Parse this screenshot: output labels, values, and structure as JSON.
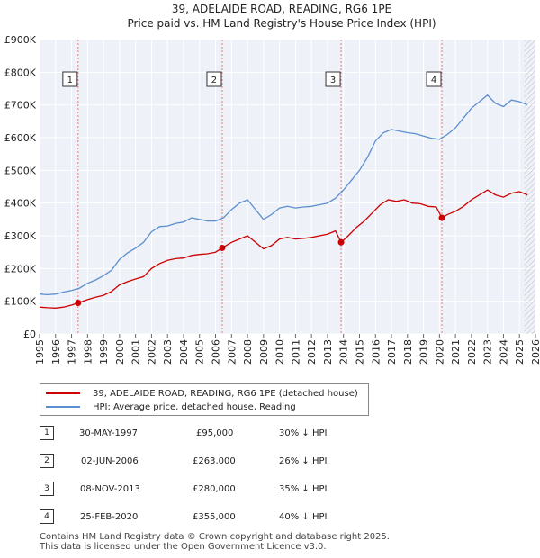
{
  "chart_data": {
    "type": "line",
    "title": "39, ADELAIDE ROAD, READING, RG6 1PE",
    "subtitle": "Price paid vs. HM Land Registry's House Price Index (HPI)",
    "xlim": [
      1995,
      2026
    ],
    "ylim": [
      0,
      900000
    ],
    "xticks": [
      "1995",
      "1996",
      "1997",
      "1998",
      "1999",
      "2000",
      "2001",
      "2002",
      "2003",
      "2004",
      "2005",
      "2006",
      "2007",
      "2008",
      "2009",
      "2010",
      "2011",
      "2012",
      "2013",
      "2014",
      "2015",
      "2016",
      "2017",
      "2018",
      "2019",
      "2020",
      "2021",
      "2022",
      "2023",
      "2024",
      "2025",
      "2026"
    ],
    "yticks": [
      {
        "value": 0,
        "label": "£0"
      },
      {
        "value": 100000,
        "label": "£100K"
      },
      {
        "value": 200000,
        "label": "£200K"
      },
      {
        "value": 300000,
        "label": "£300K"
      },
      {
        "value": 400000,
        "label": "£400K"
      },
      {
        "value": 500000,
        "label": "£500K"
      },
      {
        "value": 600000,
        "label": "£600K"
      },
      {
        "value": 700000,
        "label": "£700K"
      },
      {
        "value": 800000,
        "label": "£800K"
      },
      {
        "value": 900000,
        "label": "£900K"
      }
    ],
    "grid": true,
    "forecast_start": 2025.3,
    "series": [
      {
        "name": "39, ADELAIDE ROAD, READING, RG6 1PE (detached house)",
        "color": "#cc0000",
        "points": [
          [
            1995.0,
            82000
          ],
          [
            1995.5,
            80000
          ],
          [
            1996.0,
            79000
          ],
          [
            1996.5,
            82000
          ],
          [
            1997.0,
            88000
          ],
          [
            1997.41,
            95000
          ],
          [
            1998.0,
            105000
          ],
          [
            1998.5,
            112000
          ],
          [
            1999.0,
            118000
          ],
          [
            1999.5,
            130000
          ],
          [
            2000.0,
            150000
          ],
          [
            2000.5,
            160000
          ],
          [
            2001.0,
            168000
          ],
          [
            2001.5,
            175000
          ],
          [
            2002.0,
            200000
          ],
          [
            2002.5,
            215000
          ],
          [
            2003.0,
            225000
          ],
          [
            2003.5,
            230000
          ],
          [
            2004.0,
            232000
          ],
          [
            2004.5,
            240000
          ],
          [
            2005.0,
            243000
          ],
          [
            2005.5,
            245000
          ],
          [
            2006.0,
            250000
          ],
          [
            2006.42,
            263000
          ],
          [
            2007.0,
            280000
          ],
          [
            2007.5,
            290000
          ],
          [
            2008.0,
            300000
          ],
          [
            2008.5,
            280000
          ],
          [
            2009.0,
            260000
          ],
          [
            2009.5,
            270000
          ],
          [
            2010.0,
            290000
          ],
          [
            2010.5,
            295000
          ],
          [
            2011.0,
            290000
          ],
          [
            2011.5,
            292000
          ],
          [
            2012.0,
            295000
          ],
          [
            2012.5,
            300000
          ],
          [
            2013.0,
            305000
          ],
          [
            2013.5,
            315000
          ],
          [
            2013.85,
            280000
          ],
          [
            2014.3,
            300000
          ],
          [
            2014.8,
            325000
          ],
          [
            2015.3,
            345000
          ],
          [
            2015.8,
            370000
          ],
          [
            2016.3,
            395000
          ],
          [
            2016.8,
            410000
          ],
          [
            2017.3,
            405000
          ],
          [
            2017.8,
            410000
          ],
          [
            2018.3,
            400000
          ],
          [
            2018.8,
            398000
          ],
          [
            2019.3,
            390000
          ],
          [
            2019.8,
            388000
          ],
          [
            2020.15,
            355000
          ],
          [
            2020.5,
            365000
          ],
          [
            2021.0,
            375000
          ],
          [
            2021.5,
            390000
          ],
          [
            2022.0,
            410000
          ],
          [
            2022.5,
            425000
          ],
          [
            2023.0,
            440000
          ],
          [
            2023.5,
            425000
          ],
          [
            2024.0,
            418000
          ],
          [
            2024.5,
            430000
          ],
          [
            2025.0,
            435000
          ],
          [
            2025.5,
            425000
          ]
        ]
      },
      {
        "name": "HPI: Average price, detached house, Reading",
        "color": "#5b8fcf",
        "points": [
          [
            1995.0,
            122000
          ],
          [
            1995.5,
            120000
          ],
          [
            1996.0,
            122000
          ],
          [
            1996.5,
            128000
          ],
          [
            1997.0,
            133000
          ],
          [
            1997.5,
            140000
          ],
          [
            1998.0,
            155000
          ],
          [
            1998.5,
            165000
          ],
          [
            1999.0,
            178000
          ],
          [
            1999.5,
            195000
          ],
          [
            2000.0,
            228000
          ],
          [
            2000.5,
            248000
          ],
          [
            2001.0,
            262000
          ],
          [
            2001.5,
            280000
          ],
          [
            2002.0,
            312000
          ],
          [
            2002.5,
            328000
          ],
          [
            2003.0,
            330000
          ],
          [
            2003.5,
            338000
          ],
          [
            2004.0,
            342000
          ],
          [
            2004.5,
            355000
          ],
          [
            2005.0,
            350000
          ],
          [
            2005.5,
            345000
          ],
          [
            2006.0,
            345000
          ],
          [
            2006.5,
            355000
          ],
          [
            2007.0,
            380000
          ],
          [
            2007.5,
            400000
          ],
          [
            2008.0,
            410000
          ],
          [
            2008.5,
            380000
          ],
          [
            2009.0,
            350000
          ],
          [
            2009.5,
            365000
          ],
          [
            2010.0,
            385000
          ],
          [
            2010.5,
            390000
          ],
          [
            2011.0,
            385000
          ],
          [
            2011.5,
            388000
          ],
          [
            2012.0,
            390000
          ],
          [
            2012.5,
            395000
          ],
          [
            2013.0,
            400000
          ],
          [
            2013.5,
            415000
          ],
          [
            2014.0,
            440000
          ],
          [
            2014.5,
            470000
          ],
          [
            2015.0,
            500000
          ],
          [
            2015.5,
            540000
          ],
          [
            2016.0,
            590000
          ],
          [
            2016.5,
            615000
          ],
          [
            2017.0,
            625000
          ],
          [
            2017.5,
            620000
          ],
          [
            2018.0,
            615000
          ],
          [
            2018.5,
            612000
          ],
          [
            2019.0,
            605000
          ],
          [
            2019.5,
            598000
          ],
          [
            2020.0,
            595000
          ],
          [
            2020.5,
            610000
          ],
          [
            2021.0,
            630000
          ],
          [
            2021.5,
            660000
          ],
          [
            2022.0,
            690000
          ],
          [
            2022.5,
            710000
          ],
          [
            2023.0,
            730000
          ],
          [
            2023.5,
            705000
          ],
          [
            2024.0,
            695000
          ],
          [
            2024.5,
            715000
          ],
          [
            2025.0,
            710000
          ],
          [
            2025.5,
            700000
          ]
        ]
      }
    ],
    "sales": [
      {
        "num": "1",
        "x": 1997.41,
        "price": 95000,
        "date": "30-MAY-1997",
        "price_label": "£95,000",
        "diff": "30% ↓ HPI"
      },
      {
        "num": "2",
        "x": 2006.42,
        "price": 263000,
        "date": "02-JUN-2006",
        "price_label": "£263,000",
        "diff": "26% ↓ HPI"
      },
      {
        "num": "3",
        "x": 2013.85,
        "price": 280000,
        "date": "08-NOV-2013",
        "price_label": "£280,000",
        "diff": "35% ↓ HPI"
      },
      {
        "num": "4",
        "x": 2020.15,
        "price": 355000,
        "date": "25-FEB-2020",
        "price_label": "£355,000",
        "diff": "40% ↓ HPI"
      }
    ]
  },
  "legend": {
    "property_label": "39, ADELAIDE ROAD, READING, RG6 1PE (detached house)",
    "hpi_label": "HPI: Average price, detached house, Reading"
  },
  "footer": {
    "line1": "Contains HM Land Registry data © Crown copyright and database right 2025.",
    "line2": "This data is licensed under the Open Government Licence v3.0."
  }
}
